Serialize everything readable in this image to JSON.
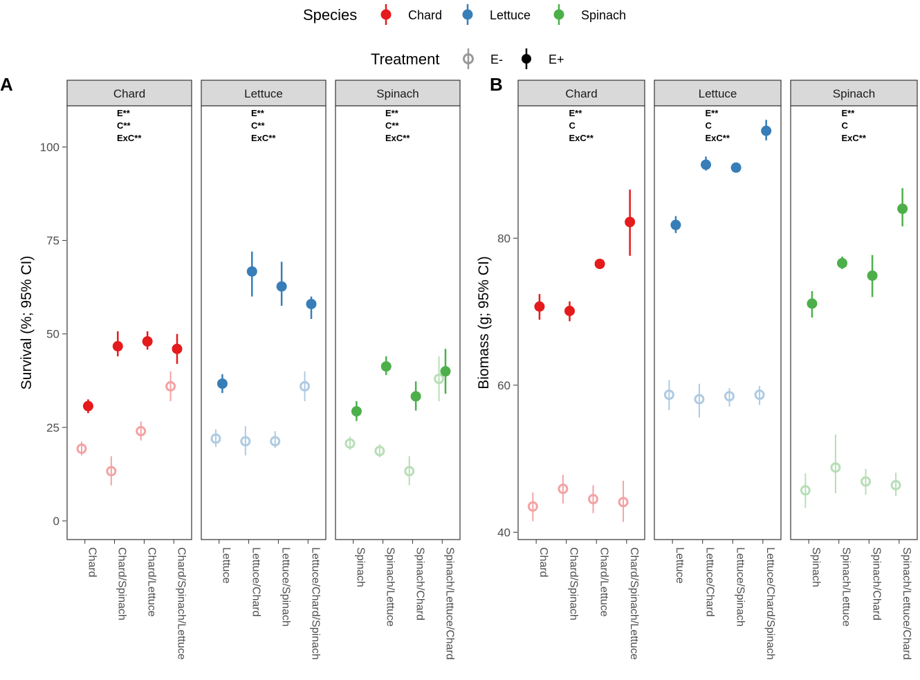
{
  "legend": {
    "species_title": "Species",
    "species": [
      {
        "label": "Chard",
        "color": "#E41A1C"
      },
      {
        "label": "Lettuce",
        "color": "#377EB8"
      },
      {
        "label": "Spinach",
        "color": "#4DAF4A"
      }
    ],
    "treatment_title": "Treatment",
    "treatment": [
      {
        "label": "E-"
      },
      {
        "label": "E+"
      }
    ]
  },
  "chart_data": [
    {
      "type": "scatter",
      "panel_label": "A",
      "ylabel": "Survival (%; 95% CI)",
      "ylim": [
        -5,
        111
      ],
      "yticks": [
        0,
        25,
        50,
        75,
        100
      ],
      "facets": [
        {
          "title": "Chard",
          "species": "Chard",
          "annotation": [
            "E**",
            "C**",
            "ExC**"
          ],
          "categories": [
            "Chard",
            "Chard/Spinach",
            "Chard/Lettuce",
            "Chard/Spinach/Lettuce"
          ],
          "series": [
            {
              "name": "E-",
              "mean": [
                19.3,
                13.3,
                24.0,
                36.0
              ],
              "lo": [
                17.5,
                9.5,
                21.5,
                32.0
              ],
              "hi": [
                21.2,
                17.3,
                26.6,
                40.0
              ]
            },
            {
              "name": "E+",
              "mean": [
                30.7,
                46.7,
                48.0,
                46.0
              ],
              "lo": [
                28.8,
                44.0,
                45.8,
                42.0
              ],
              "hi": [
                32.5,
                50.7,
                50.7,
                50.0
              ]
            }
          ]
        },
        {
          "title": "Lettuce",
          "species": "Lettuce",
          "annotation": [
            "E**",
            "C**",
            "ExC**"
          ],
          "categories": [
            "Lettuce",
            "Lettuce/Chard",
            "Lettuce/Spinach",
            "Lettuce/Chard/Spinach"
          ],
          "series": [
            {
              "name": "E-",
              "mean": [
                22.0,
                21.3,
                21.3,
                36.0
              ],
              "lo": [
                19.8,
                17.5,
                19.5,
                32.0
              ],
              "hi": [
                24.5,
                25.3,
                24.0,
                40.0
              ]
            },
            {
              "name": "E+",
              "mean": [
                36.7,
                66.7,
                62.7,
                58.0
              ],
              "lo": [
                34.2,
                60.0,
                57.5,
                54.0
              ],
              "hi": [
                39.2,
                72.0,
                69.3,
                60.0
              ]
            }
          ]
        },
        {
          "title": "Spinach",
          "species": "Spinach",
          "annotation": [
            "E**",
            "C**",
            "ExC**"
          ],
          "categories": [
            "Spinach",
            "Spinach/Lettuce",
            "Spinach/Chard",
            "Spinach/Lettuce/Chard"
          ],
          "series": [
            {
              "name": "E-",
              "mean": [
                20.7,
                18.7,
                13.3,
                38.0
              ],
              "lo": [
                19.0,
                17.0,
                9.5,
                32.0
              ],
              "hi": [
                22.5,
                20.5,
                17.3,
                44.0
              ]
            },
            {
              "name": "E+",
              "mean": [
                29.3,
                41.3,
                33.3,
                40.0
              ],
              "lo": [
                26.7,
                39.0,
                29.5,
                34.0
              ],
              "hi": [
                32.0,
                44.0,
                37.3,
                46.0
              ]
            }
          ]
        }
      ]
    },
    {
      "type": "scatter",
      "panel_label": "B",
      "ylabel": "Biomass (g; 95% CI)",
      "ylim": [
        39,
        98
      ],
      "yticks": [
        40,
        60,
        80
      ],
      "facets": [
        {
          "title": "Chard",
          "species": "Chard",
          "annotation": [
            "E**",
            "C",
            "ExC**"
          ],
          "categories": [
            "Chard",
            "Chard/Spinach",
            "Chard/Lettuce",
            "Chard/Spinach/Lettuce"
          ],
          "series": [
            {
              "name": "E-",
              "mean": [
                43.5,
                45.9,
                44.5,
                44.1
              ],
              "lo": [
                41.5,
                43.9,
                42.6,
                41.4
              ],
              "hi": [
                45.4,
                47.8,
                46.4,
                47.0
              ]
            },
            {
              "name": "E+",
              "mean": [
                70.7,
                70.1,
                76.5,
                82.2
              ],
              "lo": [
                68.9,
                68.7,
                75.8,
                77.6
              ],
              "hi": [
                72.4,
                71.4,
                77.2,
                86.6
              ]
            }
          ]
        },
        {
          "title": "Lettuce",
          "species": "Lettuce",
          "annotation": [
            "E**",
            "C",
            "ExC**"
          ],
          "categories": [
            "Lettuce",
            "Lettuce/Chard",
            "Lettuce/Spinach",
            "Lettuce/Chard/Spinach"
          ],
          "series": [
            {
              "name": "E-",
              "mean": [
                58.7,
                58.1,
                58.5,
                58.7
              ],
              "lo": [
                56.6,
                55.6,
                57.1,
                57.3
              ],
              "hi": [
                60.7,
                60.2,
                59.6,
                59.9
              ]
            },
            {
              "name": "E+",
              "mean": [
                81.8,
                90.0,
                89.6,
                94.6
              ],
              "lo": [
                80.7,
                89.2,
                89.1,
                93.3
              ],
              "hi": [
                83.0,
                91.1,
                90.2,
                96.1
              ]
            }
          ]
        },
        {
          "title": "Spinach",
          "species": "Spinach",
          "annotation": [
            "E**",
            "C",
            "ExC**"
          ],
          "categories": [
            "Spinach",
            "Spinach/Lettuce",
            "Spinach/Chard",
            "Spinach/Lettuce/Chard"
          ],
          "series": [
            {
              "name": "E-",
              "mean": [
                45.7,
                48.8,
                46.9,
                46.4
              ],
              "lo": [
                43.3,
                45.3,
                45.1,
                44.9
              ],
              "hi": [
                48.0,
                53.3,
                48.6,
                48.1
              ]
            },
            {
              "name": "E+",
              "mean": [
                71.1,
                76.6,
                74.9,
                84.0
              ],
              "lo": [
                69.2,
                75.8,
                72.0,
                81.6
              ],
              "hi": [
                72.8,
                77.5,
                77.7,
                86.8
              ]
            }
          ]
        }
      ]
    }
  ]
}
